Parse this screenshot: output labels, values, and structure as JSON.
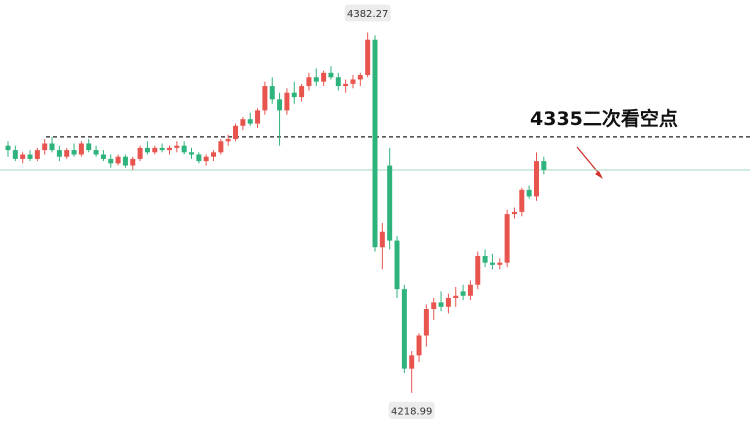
{
  "chart_data": {
    "type": "candlestick",
    "ylim": [
      4204,
      4397
    ],
    "up_color": "#e8554e",
    "down_color": "#2eb37c",
    "high_label": 4382.27,
    "low_label": 4218.99,
    "ref_line": {
      "value": 4335,
      "label": "4335二次看空点"
    },
    "last_price_line": 4320,
    "open": [
      4331,
      4329,
      4325,
      4327,
      4325,
      4329,
      4332,
      4329,
      4326,
      4329,
      4327,
      4332,
      4329,
      4327,
      4325,
      4323,
      4326,
      4322,
      4325,
      4330,
      4328,
      4330,
      4329,
      4330,
      4331,
      4328,
      4327,
      4324,
      4326,
      4328,
      4333,
      4334,
      4340,
      4343,
      4341,
      4347,
      4358,
      4352,
      4347,
      4355,
      4353,
      4358,
      4362,
      4360,
      4364,
      4362,
      4358,
      4359,
      4361,
      4363,
      4379,
      4285,
      4322,
      4288,
      4266,
      4230,
      4236,
      4245,
      4257,
      4260,
      4258,
      4262,
      4265,
      4263,
      4268,
      4281,
      4278,
      4277,
      4278,
      4300,
      4301,
      4311,
      4308,
      4324
    ],
    "high": [
      4333,
      4331,
      4328,
      4329,
      4330,
      4334,
      4335,
      4331,
      4330,
      4332,
      4333,
      4334,
      4331,
      4329,
      4327,
      4327,
      4327,
      4326,
      4331,
      4333,
      4331,
      4332,
      4331,
      4333,
      4333,
      4330,
      4328,
      4327,
      4329,
      4334,
      4336,
      4341,
      4344,
      4346,
      4348,
      4360,
      4362,
      4355,
      4357,
      4360,
      4359,
      4364,
      4366,
      4365,
      4367,
      4364,
      4361,
      4363,
      4364,
      4382.27,
      4381,
      4296,
      4330,
      4290,
      4268,
      4238,
      4246,
      4259,
      4262,
      4265,
      4264,
      4267,
      4268,
      4270,
      4283,
      4284,
      4282,
      4280,
      4302,
      4303,
      4312,
      4313,
      4328,
      4326
    ],
    "low": [
      4326,
      4324,
      4323,
      4324,
      4324,
      4327,
      4328,
      4324,
      4325,
      4326,
      4326,
      4328,
      4326,
      4324,
      4321,
      4322,
      4321,
      4320,
      4324,
      4327,
      4327,
      4328,
      4327,
      4328,
      4327,
      4325,
      4323,
      4322,
      4324,
      4327,
      4331,
      4333,
      4338,
      4340,
      4339,
      4345,
      4350,
      4331,
      4345,
      4350,
      4351,
      4356,
      4358,
      4358,
      4361,
      4356,
      4355,
      4357,
      4358,
      4362,
      4283,
      4275,
      4284,
      4262,
      4228,
      4218.99,
      4233,
      4240,
      4252,
      4256,
      4255,
      4258,
      4261,
      4261,
      4266,
      4276,
      4275,
      4275,
      4276,
      4298,
      4299,
      4307,
      4306,
      4318
    ],
    "close": [
      4329,
      4325,
      4327,
      4325,
      4329,
      4332,
      4329,
      4326,
      4329,
      4327,
      4332,
      4329,
      4327,
      4325,
      4323,
      4326,
      4322,
      4325,
      4330,
      4328,
      4330,
      4329,
      4330,
      4331,
      4328,
      4327,
      4324,
      4326,
      4328,
      4333,
      4334,
      4340,
      4343,
      4341,
      4347,
      4358,
      4352,
      4347,
      4355,
      4353,
      4358,
      4362,
      4360,
      4364,
      4362,
      4358,
      4359,
      4361,
      4363,
      4379,
      4285,
      4292,
      4288,
      4266,
      4230,
      4236,
      4245,
      4257,
      4260,
      4258,
      4262,
      4263,
      4263,
      4268,
      4281,
      4278,
      4277,
      4278,
      4300,
      4301,
      4311,
      4308,
      4324,
      4320
    ]
  }
}
